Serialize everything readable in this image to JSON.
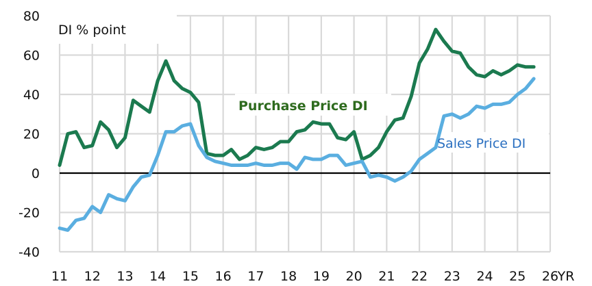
{
  "chart_data": {
    "type": "line",
    "title": "",
    "unit_label": "DI % point",
    "xlabel": "YR",
    "ylabel": "DI % point",
    "ylim": [
      -40,
      80
    ],
    "xlim": [
      11,
      26
    ],
    "grid": true,
    "legend_position": "inline",
    "y_ticks": [
      "80",
      "60",
      "40",
      "20",
      "0",
      "-20",
      "-40"
    ],
    "y_tick_values": [
      80,
      60,
      40,
      20,
      0,
      -20,
      -40
    ],
    "x_ticks": [
      "11",
      "12",
      "13",
      "14",
      "15",
      "16",
      "17",
      "18",
      "19",
      "20",
      "21",
      "22",
      "23",
      "24",
      "25",
      "26"
    ],
    "x_tick_values": [
      11,
      12,
      13,
      14,
      15,
      16,
      17,
      18,
      19,
      20,
      21,
      22,
      23,
      24,
      25,
      26
    ],
    "x_axis_suffix": "YR",
    "x": [
      11.0,
      11.25,
      11.5,
      11.75,
      12.0,
      12.25,
      12.5,
      12.75,
      13.0,
      13.25,
      13.5,
      13.75,
      14.0,
      14.25,
      14.5,
      14.75,
      15.0,
      15.25,
      15.5,
      15.75,
      16.0,
      16.25,
      16.5,
      16.75,
      17.0,
      17.25,
      17.5,
      17.75,
      18.0,
      18.25,
      18.5,
      18.75,
      19.0,
      19.25,
      19.5,
      19.75,
      20.0,
      20.25,
      20.5,
      20.75,
      21.0,
      21.25,
      21.5,
      21.75,
      22.0,
      22.25,
      22.5,
      22.75,
      23.0,
      23.25,
      23.5,
      23.75,
      24.0,
      24.25,
      24.5,
      24.75,
      25.0,
      25.25,
      25.5
    ],
    "series": [
      {
        "name": "Purchase Price DI",
        "color": "#1b7a4f",
        "label_color": "#2e6b1e",
        "values": [
          4,
          20,
          21,
          13,
          14,
          26,
          22,
          13,
          18,
          37,
          34,
          31,
          47,
          57,
          47,
          43,
          41,
          36,
          10,
          9,
          9,
          12,
          7,
          9,
          13,
          12,
          13,
          16,
          16,
          21,
          22,
          26,
          25,
          25,
          18,
          17,
          21,
          7,
          9,
          13,
          21,
          27,
          28,
          39,
          56,
          63,
          73,
          67,
          62,
          61,
          54,
          50,
          49,
          52,
          50,
          52,
          55,
          54,
          54
        ]
      },
      {
        "name": "Sales Price DI",
        "color": "#5aaee0",
        "label_color": "#2a6fc0",
        "values": [
          -28,
          -29,
          -24,
          -23,
          -17,
          -20,
          -11,
          -13,
          -14,
          -7,
          -2,
          -1,
          9,
          21,
          21,
          24,
          25,
          14,
          8,
          6,
          5,
          4,
          4,
          4,
          5,
          4,
          4,
          5,
          5,
          2,
          8,
          7,
          7,
          9,
          9,
          4,
          5,
          6,
          -2,
          -1,
          -2,
          -4,
          -2,
          1,
          7,
          10,
          13,
          29,
          30,
          28,
          30,
          34,
          33,
          35,
          35,
          36,
          40,
          43,
          48
        ]
      }
    ],
    "annotations": [
      {
        "text": "Purchase Price DI",
        "x": 17.6,
        "y": 34
      },
      {
        "text": "Sales Price DI",
        "x": 22.9,
        "y": 15
      }
    ]
  },
  "labels": {
    "unit": "DI % point",
    "purchase_series": "Purchase Price DI",
    "sales_series": "Sales Price DI",
    "x_suffix": "YR"
  },
  "colors": {
    "grid": "#d9d9d9",
    "zero_line": "#000000",
    "purchase": "#1b7a4f",
    "sales": "#5aaee0",
    "purchase_label": "#2e6b1e",
    "sales_label": "#2a6fc0"
  }
}
